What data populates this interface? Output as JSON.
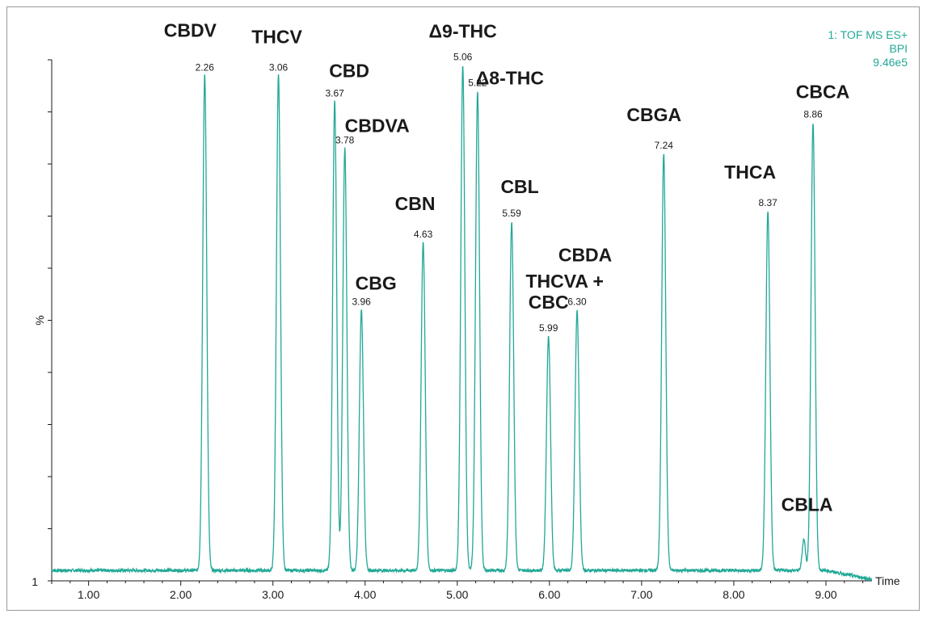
{
  "header": {
    "function_label": "1: TOF MS ES+",
    "trace_label": "BPI",
    "intensity_label": "9.46e5"
  },
  "chart_data": {
    "type": "line",
    "title": "",
    "xlabel": "Time",
    "ylabel": "%",
    "ylabel_bottom": "1",
    "xlim": [
      0.6,
      9.5
    ],
    "ylim": [
      0,
      100
    ],
    "xticks": [
      "1.00",
      "2.00",
      "3.00",
      "4.00",
      "5.00",
      "6.00",
      "7.00",
      "8.00",
      "9.00"
    ],
    "line_color": "#22a896",
    "baseline": 2,
    "peaks": [
      {
        "name": "CBDV",
        "rt": "2.26",
        "x": 2.26,
        "height": 97
      },
      {
        "name": "THCV",
        "rt": "3.06",
        "x": 3.06,
        "height": 97
      },
      {
        "name": "CBD",
        "rt": "3.67",
        "x": 3.67,
        "height": 92
      },
      {
        "name": "CBDVA",
        "rt": "3.78",
        "x": 3.78,
        "height": 83
      },
      {
        "name": "CBG",
        "rt": "3.96",
        "x": 3.96,
        "height": 52
      },
      {
        "name": "CBN",
        "rt": "4.63",
        "x": 4.63,
        "height": 65
      },
      {
        "name": "Δ9-THC",
        "rt": "5.06",
        "x": 5.06,
        "height": 99
      },
      {
        "name": "Δ8-THC",
        "rt": "5.22",
        "x": 5.22,
        "height": 94
      },
      {
        "name": "CBL",
        "rt": "5.59",
        "x": 5.59,
        "height": 69
      },
      {
        "name": "THCVA +\nCBC",
        "rt": "5.99",
        "x": 5.99,
        "height": 47
      },
      {
        "name": "CBDA",
        "rt": "6.30",
        "x": 6.3,
        "height": 52
      },
      {
        "name": "CBGA",
        "rt": "7.24",
        "x": 7.24,
        "height": 82
      },
      {
        "name": "THCA",
        "rt": "8.37",
        "x": 8.37,
        "height": 71
      },
      {
        "name": "CBCA",
        "rt": "8.86",
        "x": 8.86,
        "height": 88
      },
      {
        "name": "CBLA",
        "rt": "",
        "x": 8.76,
        "height": 8
      }
    ]
  }
}
